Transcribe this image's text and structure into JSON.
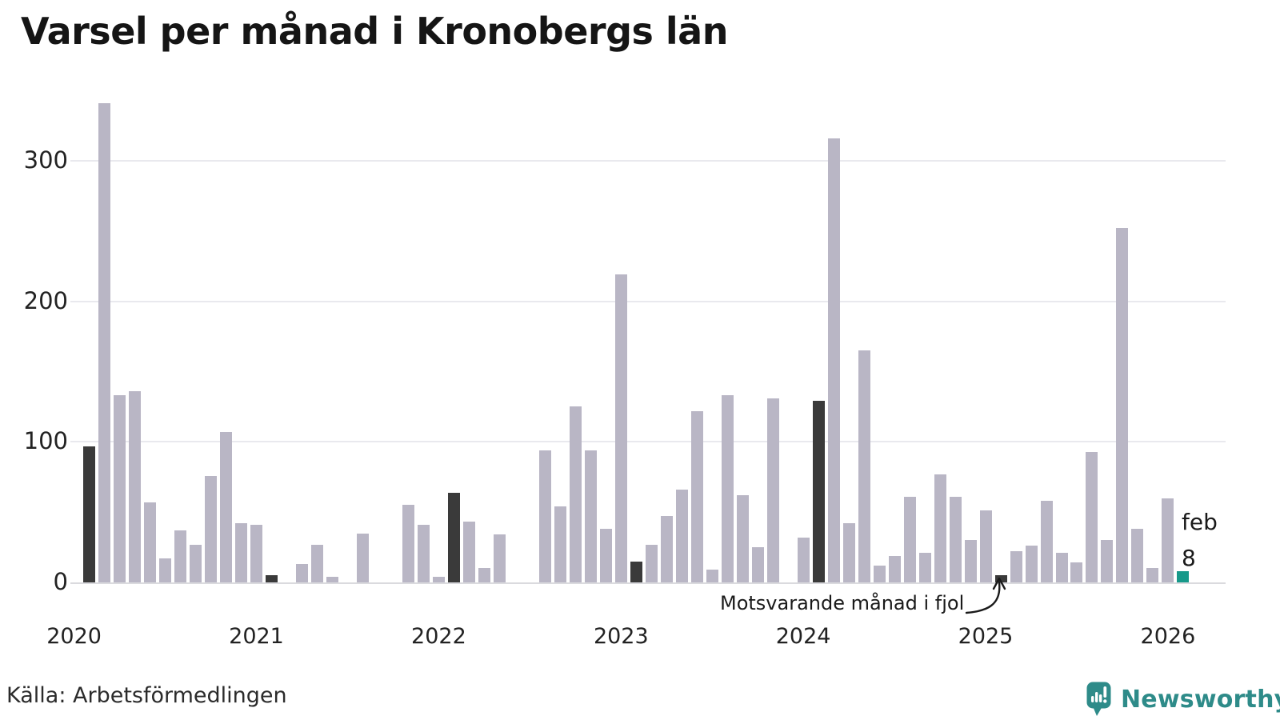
{
  "title": "Varsel per månad i Kronobergs län",
  "source": "Källa: Arbetsförmedlingen",
  "logo": {
    "text": "Newsworthy",
    "color": "#2e8b89",
    "icon": "newsworthy-speech-bubble-barchart-icon"
  },
  "annotation": {
    "text": "Motsvarande månad i fjol",
    "points_to": "feb 2025"
  },
  "current_label": {
    "line1": "feb",
    "line2": "8"
  },
  "colors": {
    "bar_normal": "#b9b6c5",
    "bar_compare": "#3a3a3a",
    "bar_current": "#17998a",
    "grid": "#e9e9ee",
    "axis_line": "#dadade",
    "text": "#1a1a1a"
  },
  "chart_data": {
    "type": "bar",
    "title": "Varsel per månad i Kronobergs län",
    "xlabel": "",
    "ylabel": "",
    "ylim": [
      0,
      350
    ],
    "yticks": [
      0,
      100,
      200,
      300
    ],
    "grid": "horizontal",
    "legend": "none",
    "bar_kinds": {
      "normal": "month",
      "compare": "february previous years (dark)",
      "current": "latest month (teal)"
    },
    "xticks": [
      {
        "label": "2020",
        "month_index": -1
      },
      {
        "label": "2021",
        "month_index": 11
      },
      {
        "label": "2022",
        "month_index": 23
      },
      {
        "label": "2023",
        "month_index": 35
      },
      {
        "label": "2024",
        "month_index": 47
      },
      {
        "label": "2025",
        "month_index": 59
      },
      {
        "label": "2026",
        "month_index": 71
      }
    ],
    "series": [
      {
        "month": "feb 2020",
        "value": 97,
        "kind": "compare"
      },
      {
        "month": "mar 2020",
        "value": 341,
        "kind": "normal"
      },
      {
        "month": "apr 2020",
        "value": 133,
        "kind": "normal"
      },
      {
        "month": "maj 2020",
        "value": 136,
        "kind": "normal"
      },
      {
        "month": "jun 2020",
        "value": 57,
        "kind": "normal"
      },
      {
        "month": "jul 2020",
        "value": 17,
        "kind": "normal"
      },
      {
        "month": "aug 2020",
        "value": 37,
        "kind": "normal"
      },
      {
        "month": "sep 2020",
        "value": 27,
        "kind": "normal"
      },
      {
        "month": "okt 2020",
        "value": 76,
        "kind": "normal"
      },
      {
        "month": "nov 2020",
        "value": 107,
        "kind": "normal"
      },
      {
        "month": "dec 2020",
        "value": 42,
        "kind": "normal"
      },
      {
        "month": "jan 2021",
        "value": 41,
        "kind": "normal"
      },
      {
        "month": "feb 2021",
        "value": 5,
        "kind": "compare"
      },
      {
        "month": "mar 2021",
        "value": 0,
        "kind": "normal"
      },
      {
        "month": "apr 2021",
        "value": 13,
        "kind": "normal"
      },
      {
        "month": "maj 2021",
        "value": 27,
        "kind": "normal"
      },
      {
        "month": "jun 2021",
        "value": 4,
        "kind": "normal"
      },
      {
        "month": "jul 2021",
        "value": 0,
        "kind": "normal"
      },
      {
        "month": "aug 2021",
        "value": 35,
        "kind": "normal"
      },
      {
        "month": "sep 2021",
        "value": 0,
        "kind": "normal"
      },
      {
        "month": "okt 2021",
        "value": 0,
        "kind": "normal"
      },
      {
        "month": "nov 2021",
        "value": 55,
        "kind": "normal"
      },
      {
        "month": "dec 2021",
        "value": 41,
        "kind": "normal"
      },
      {
        "month": "jan 2022",
        "value": 4,
        "kind": "normal"
      },
      {
        "month": "feb 2022",
        "value": 64,
        "kind": "compare"
      },
      {
        "month": "mar 2022",
        "value": 43,
        "kind": "normal"
      },
      {
        "month": "apr 2022",
        "value": 10,
        "kind": "normal"
      },
      {
        "month": "maj 2022",
        "value": 34,
        "kind": "normal"
      },
      {
        "month": "jun 2022",
        "value": 0,
        "kind": "normal"
      },
      {
        "month": "jul 2022",
        "value": 0,
        "kind": "normal"
      },
      {
        "month": "aug 2022",
        "value": 94,
        "kind": "normal"
      },
      {
        "month": "sep 2022",
        "value": 54,
        "kind": "normal"
      },
      {
        "month": "okt 2022",
        "value": 125,
        "kind": "normal"
      },
      {
        "month": "nov 2022",
        "value": 94,
        "kind": "normal"
      },
      {
        "month": "dec 2022",
        "value": 38,
        "kind": "normal"
      },
      {
        "month": "jan 2023",
        "value": 219,
        "kind": "normal"
      },
      {
        "month": "feb 2023",
        "value": 15,
        "kind": "compare"
      },
      {
        "month": "mar 2023",
        "value": 27,
        "kind": "normal"
      },
      {
        "month": "apr 2023",
        "value": 47,
        "kind": "normal"
      },
      {
        "month": "maj 2023",
        "value": 66,
        "kind": "normal"
      },
      {
        "month": "jun 2023",
        "value": 122,
        "kind": "normal"
      },
      {
        "month": "jul 2023",
        "value": 9,
        "kind": "normal"
      },
      {
        "month": "aug 2023",
        "value": 133,
        "kind": "normal"
      },
      {
        "month": "sep 2023",
        "value": 62,
        "kind": "normal"
      },
      {
        "month": "okt 2023",
        "value": 25,
        "kind": "normal"
      },
      {
        "month": "nov 2023",
        "value": 131,
        "kind": "normal"
      },
      {
        "month": "dec 2023",
        "value": 0,
        "kind": "normal"
      },
      {
        "month": "jan 2024",
        "value": 32,
        "kind": "normal"
      },
      {
        "month": "feb 2024",
        "value": 129,
        "kind": "compare"
      },
      {
        "month": "mar 2024",
        "value": 316,
        "kind": "normal"
      },
      {
        "month": "apr 2024",
        "value": 42,
        "kind": "normal"
      },
      {
        "month": "maj 2024",
        "value": 165,
        "kind": "normal"
      },
      {
        "month": "jun 2024",
        "value": 12,
        "kind": "normal"
      },
      {
        "month": "jul 2024",
        "value": 19,
        "kind": "normal"
      },
      {
        "month": "aug 2024",
        "value": 61,
        "kind": "normal"
      },
      {
        "month": "sep 2024",
        "value": 21,
        "kind": "normal"
      },
      {
        "month": "okt 2024",
        "value": 77,
        "kind": "normal"
      },
      {
        "month": "nov 2024",
        "value": 61,
        "kind": "normal"
      },
      {
        "month": "dec 2024",
        "value": 30,
        "kind": "normal"
      },
      {
        "month": "jan 2025",
        "value": 51,
        "kind": "normal"
      },
      {
        "month": "feb 2025",
        "value": 5,
        "kind": "compare"
      },
      {
        "month": "mar 2025",
        "value": 22,
        "kind": "normal"
      },
      {
        "month": "apr 2025",
        "value": 26,
        "kind": "normal"
      },
      {
        "month": "maj 2025",
        "value": 58,
        "kind": "normal"
      },
      {
        "month": "jun 2025",
        "value": 21,
        "kind": "normal"
      },
      {
        "month": "jul 2025",
        "value": 14,
        "kind": "normal"
      },
      {
        "month": "aug 2025",
        "value": 93,
        "kind": "normal"
      },
      {
        "month": "sep 2025",
        "value": 30,
        "kind": "normal"
      },
      {
        "month": "okt 2025",
        "value": 252,
        "kind": "normal"
      },
      {
        "month": "nov 2025",
        "value": 38,
        "kind": "normal"
      },
      {
        "month": "dec 2025",
        "value": 10,
        "kind": "normal"
      },
      {
        "month": "jan 2026",
        "value": 60,
        "kind": "normal"
      },
      {
        "month": "feb 2026",
        "value": 8,
        "kind": "current"
      }
    ]
  }
}
